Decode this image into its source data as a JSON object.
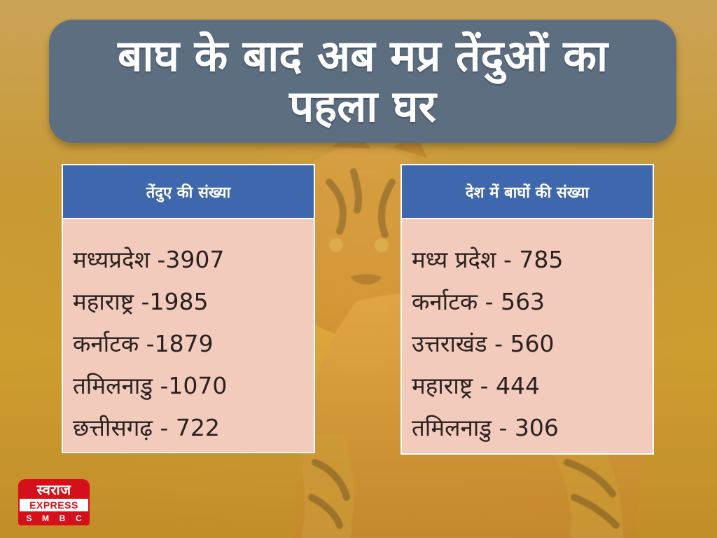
{
  "title": "बाघ के बाद अब मप्र तेंदुओं का पहला घर",
  "left_card": {
    "header": "तेंदुए की संख्या",
    "items": [
      "मध्यप्रदेश -3907",
      "महाराष्ट्र -1985",
      "कर्नाटक -1879",
      "तमिलनाडु -1070",
      "छत्तीसगढ़ - 722"
    ]
  },
  "right_card": {
    "header": "देश में बाघों की संख्या",
    "items": [
      "मध्य प्रदेश - 785",
      "कर्नाटक - 563",
      "उत्तराखंड - 560",
      "महाराष्ट्र - 444",
      "तमिलनाडु - 306"
    ]
  },
  "logo": {
    "top": "स्वराज",
    "middle": "EXPRESS",
    "bottom": [
      "S",
      "M",
      "B",
      "C"
    ]
  },
  "colors": {
    "title_bg": "#5c6e80",
    "header_bg": "#3f67ae",
    "card_bg": "#f2cbbd",
    "logo_red": "#d6101a"
  }
}
